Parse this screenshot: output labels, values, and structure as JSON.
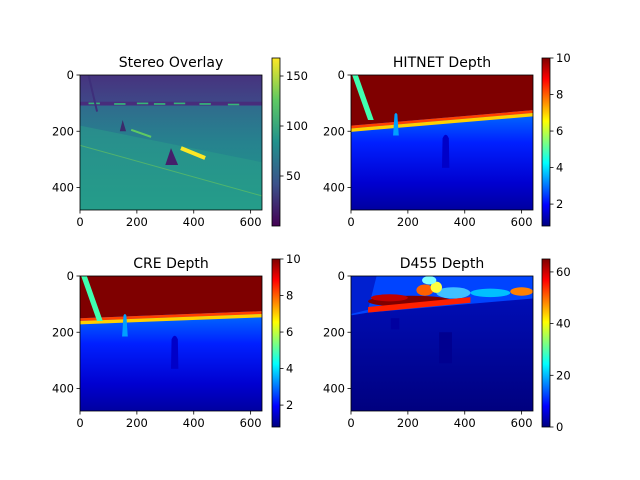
{
  "chart_data": [
    {
      "type": "heatmap",
      "title": "Stereo Overlay",
      "colormap": "viridis",
      "image_width": 640,
      "image_height": 480,
      "x_ticks": [
        0,
        200,
        400,
        600
      ],
      "y_ticks": [
        0,
        200,
        400
      ],
      "colorbar_range": [
        0,
        168
      ],
      "colorbar_ticks": [
        50,
        100,
        150
      ],
      "colors": [
        "#440154",
        "#3b528b",
        "#21918c",
        "#5ec962",
        "#fde725"
      ]
    },
    {
      "type": "heatmap",
      "title": "HITNET Depth",
      "colormap": "jet",
      "image_width": 640,
      "image_height": 480,
      "x_ticks": [
        0,
        200,
        400,
        600
      ],
      "y_ticks": [
        0,
        200,
        400
      ],
      "colorbar_range": [
        0.8,
        10
      ],
      "colorbar_ticks": [
        2,
        4,
        6,
        8,
        10
      ],
      "colors": [
        "#00007f",
        "#0000ff",
        "#007fff",
        "#00ffff",
        "#7fff7f",
        "#ffff00",
        "#ff7f00",
        "#ff0000",
        "#7f0000"
      ]
    },
    {
      "type": "heatmap",
      "title": "CRE Depth",
      "colormap": "jet",
      "image_width": 640,
      "image_height": 480,
      "x_ticks": [
        0,
        200,
        400,
        600
      ],
      "y_ticks": [
        0,
        200,
        400
      ],
      "colorbar_range": [
        0.8,
        10
      ],
      "colorbar_ticks": [
        2,
        4,
        6,
        8,
        10
      ],
      "colors": [
        "#00007f",
        "#0000ff",
        "#007fff",
        "#00ffff",
        "#7fff7f",
        "#ffff00",
        "#ff7f00",
        "#ff0000",
        "#7f0000"
      ]
    },
    {
      "type": "heatmap",
      "title": "D455 Depth",
      "colormap": "jet",
      "image_width": 640,
      "image_height": 480,
      "x_ticks": [
        0,
        200,
        400,
        600
      ],
      "y_ticks": [
        0,
        200,
        400
      ],
      "colorbar_range": [
        0,
        65
      ],
      "colorbar_ticks": [
        0,
        20,
        40,
        60
      ],
      "colors": [
        "#00007f",
        "#0000ff",
        "#007fff",
        "#00ffff",
        "#7fff7f",
        "#ffff00",
        "#ff7f00",
        "#ff0000",
        "#7f0000"
      ]
    }
  ]
}
